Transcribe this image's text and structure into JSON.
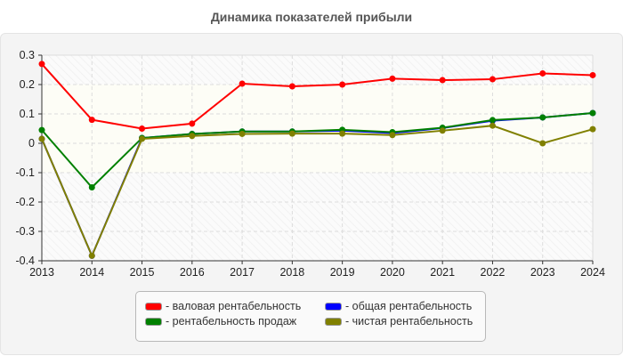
{
  "chart_data": {
    "type": "line",
    "title": "Динамика показателей прибыли",
    "x": [
      "2013",
      "2014",
      "2015",
      "2016",
      "2017",
      "2018",
      "2019",
      "2020",
      "2021",
      "2022",
      "2023",
      "2024"
    ],
    "ylim": [
      -0.4,
      0.3
    ],
    "yticks": [
      "0.3",
      "0.2",
      "0.1",
      "0",
      "-0.1",
      "-0.2",
      "-0.3",
      "-0.4"
    ],
    "yticks_values": [
      0.3,
      0.2,
      0.1,
      0,
      -0.1,
      -0.2,
      -0.3,
      -0.4
    ],
    "grid": true,
    "legend_position": "bottom",
    "series": [
      {
        "name": "- валовая рентабельность",
        "color": "#ff0000",
        "values": [
          0.27,
          0.08,
          0.05,
          0.067,
          0.203,
          0.194,
          0.2,
          0.22,
          0.215,
          0.218,
          0.238,
          0.232
        ]
      },
      {
        "name": "- общая рентабельность",
        "color": "#0000ff",
        "values": [
          0.015,
          -0.383,
          0.018,
          0.032,
          0.04,
          0.04,
          0.043,
          0.035,
          0.052,
          0.077,
          0.088,
          0.103
        ]
      },
      {
        "name": "- рентабельность продаж",
        "color": "#008000",
        "values": [
          0.045,
          -0.15,
          0.018,
          0.032,
          0.04,
          0.04,
          0.046,
          0.038,
          0.053,
          0.079,
          0.088,
          0.103
        ]
      },
      {
        "name": "- чистая рентабельность",
        "color": "#808000",
        "values": [
          0.015,
          -0.383,
          0.015,
          0.025,
          0.032,
          0.033,
          0.033,
          0.028,
          0.043,
          0.06,
          0.0,
          0.048
        ]
      }
    ]
  }
}
